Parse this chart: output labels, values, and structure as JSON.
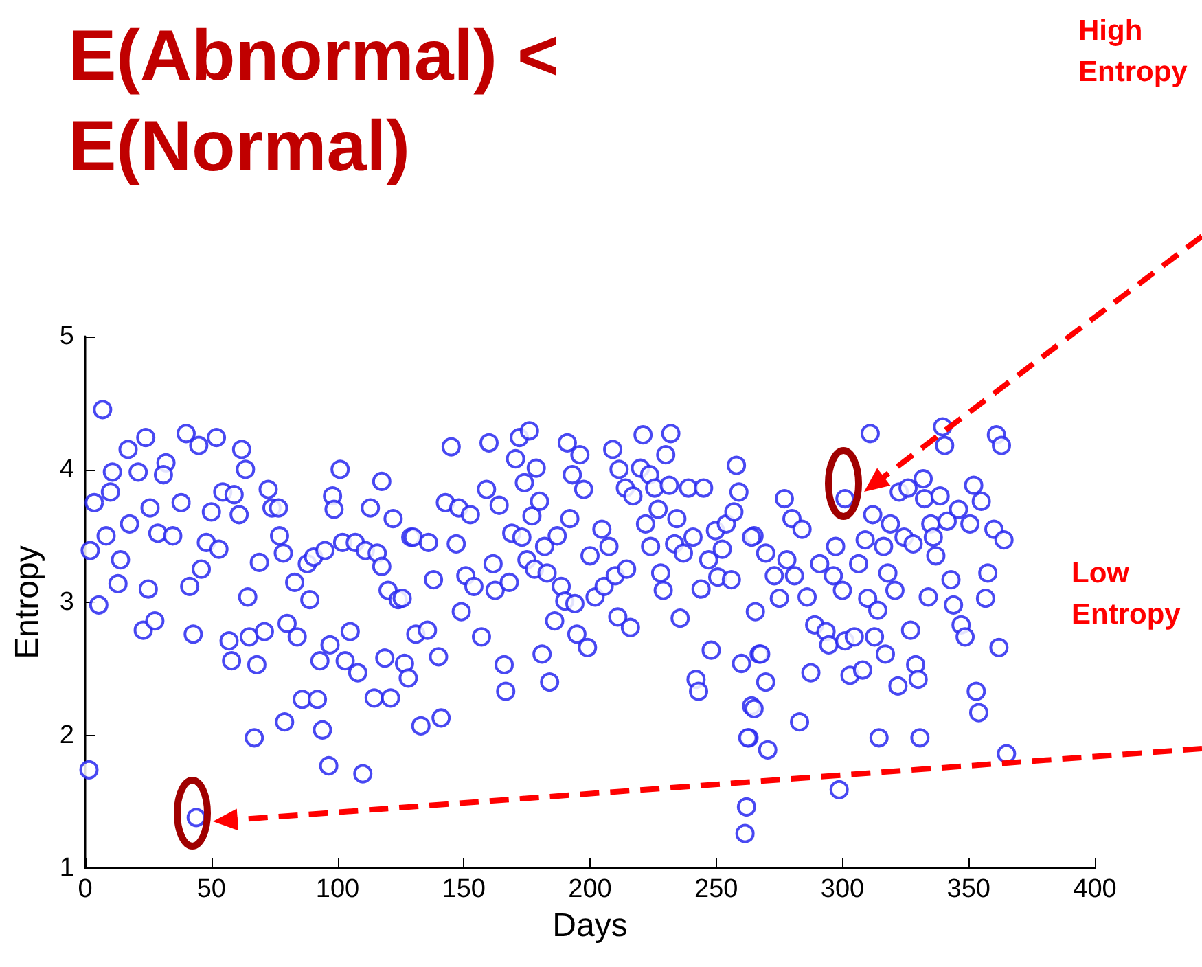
{
  "chart_data": {
    "type": "scatter",
    "title": "E(Abnormal) < E(Normal)",
    "xlabel": "Days",
    "ylabel": "Entropy",
    "xlim": [
      0,
      400
    ],
    "xticks": [
      0,
      50,
      100,
      150,
      200,
      250,
      300,
      350,
      400
    ],
    "ylim": [
      1,
      5
    ],
    "yticks": [
      1,
      2,
      3,
      4,
      5
    ],
    "marker": "circle",
    "annotations": [
      "High Entropy",
      "Low Entropy"
    ],
    "x": [
      1.5,
      2,
      3.6,
      5.4,
      6.9,
      8.3,
      10.8,
      10,
      13,
      14,
      17,
      17.6,
      21,
      24,
      23,
      25,
      27.6,
      25.7,
      28.8,
      32,
      31,
      34.7,
      38,
      40,
      41.4,
      42.8,
      44,
      45,
      46,
      48,
      50,
      52,
      53,
      54.5,
      59,
      62,
      63.5,
      57,
      58,
      61,
      64.4,
      65,
      67,
      68,
      69,
      71,
      72.5,
      74,
      76.6,
      77,
      78.5,
      79,
      80,
      83,
      84,
      86,
      88,
      89,
      90.5,
      92,
      93,
      94,
      95,
      96.5,
      98,
      98.6,
      101,
      97,
      102,
      103,
      107,
      105,
      108,
      110,
      111,
      113,
      114.5,
      115.7,
      117.5,
      117.5,
      118.7,
      120,
      121,
      122,
      124,
      126.5,
      128,
      129,
      125.6,
      130,
      133,
      131,
      135.6,
      136,
      138,
      141,
      140,
      142.7,
      145,
      147,
      149,
      148,
      150.8,
      152.6,
      154,
      157,
      159,
      160,
      161.6,
      162.4,
      164,
      166,
      166.6,
      168,
      169,
      170.5,
      172,
      173,
      176,
      174,
      175,
      177,
      178.7,
      178,
      180,
      181,
      182,
      183,
      184,
      186,
      187,
      188.6,
      190,
      191,
      193,
      192,
      194,
      194.8,
      196,
      197.5,
      199,
      200,
      202,
      204.7,
      205.6,
      207.5,
      209,
      210,
      211.5,
      211,
      214,
      214.5,
      216,
      217,
      220,
      221,
      222,
      223.6,
      224,
      225.6,
      227,
      228,
      229,
      230,
      232,
      231.4,
      234.4,
      233.5,
      235.7,
      237,
      239,
      240.8,
      242,
      243,
      244,
      245,
      247,
      248,
      249.7,
      250.6,
      252.4,
      254,
      256,
      257,
      258,
      259,
      260,
      262,
      261.4,
      263,
      264,
      265.5,
      265,
      267,
      264,
      265,
      262.5,
      267.6,
      269.6,
      270.4,
      269.6,
      273,
      275,
      277,
      278,
      280,
      281,
      283,
      284,
      286,
      287.5,
      289,
      291,
      293.5,
      294.6,
      296.4,
      297.3,
      298.7,
      300,
      301,
      301,
      303,
      304.7,
      306.4,
      308,
      309,
      310,
      311,
      312,
      312.7,
      314,
      314.5,
      316.3,
      317,
      318,
      319,
      320.8,
      322,
      322.5,
      324.4,
      326,
      327,
      328,
      329,
      330,
      330.7,
      332,
      332.5,
      334,
      335,
      336,
      337,
      338.7,
      339.7,
      340.5,
      341.5,
      343,
      344,
      346,
      347,
      348.6,
      350.5,
      352,
      353,
      354,
      355,
      356.7,
      357.6,
      360,
      361,
      363,
      362,
      364,
      365
    ],
    "series": [
      {
        "color": "#2828f0",
        "values": [
          1.74,
          3.39,
          3.75,
          2.98,
          4.45,
          3.5,
          3.98,
          3.83,
          3.14,
          3.32,
          4.15,
          3.59,
          3.98,
          4.24,
          2.79,
          3.1,
          2.86,
          3.71,
          3.52,
          4.05,
          3.96,
          3.5,
          3.75,
          4.27,
          3.12,
          2.76,
          1.38,
          4.18,
          3.25,
          3.45,
          3.68,
          4.24,
          3.4,
          3.83,
          3.81,
          4.15,
          4,
          2.71,
          2.56,
          3.66,
          3.04,
          2.74,
          1.98,
          2.53,
          3.3,
          2.78,
          3.85,
          3.71,
          3.71,
          3.5,
          3.37,
          2.1,
          2.84,
          3.15,
          2.74,
          2.27,
          3.29,
          3.02,
          3.34,
          2.27,
          2.56,
          2.04,
          3.39,
          1.77,
          3.8,
          3.7,
          4,
          2.68,
          3.45,
          2.56,
          3.45,
          2.78,
          2.47,
          1.71,
          3.39,
          3.71,
          2.28,
          3.37,
          3.91,
          3.27,
          2.58,
          3.09,
          2.28,
          3.63,
          3.02,
          2.54,
          2.43,
          3.49,
          3.03,
          3.49,
          2.07,
          2.76,
          2.79,
          3.45,
          3.17,
          2.13,
          2.59,
          3.75,
          4.17,
          3.44,
          2.93,
          3.71,
          3.2,
          3.66,
          3.12,
          2.74,
          3.85,
          4.2,
          3.29,
          3.09,
          3.73,
          2.53,
          2.33,
          3.15,
          3.52,
          4.08,
          4.24,
          3.49,
          4.29,
          3.9,
          3.32,
          3.65,
          4.01,
          3.25,
          3.76,
          2.61,
          3.42,
          3.22,
          2.4,
          2.86,
          3.5,
          3.12,
          3.01,
          4.2,
          3.96,
          3.63,
          2.99,
          2.76,
          4.11,
          3.85,
          2.66,
          3.35,
          3.04,
          3.55,
          3.12,
          3.42,
          4.15,
          3.2,
          4,
          2.89,
          3.86,
          3.25,
          2.81,
          3.8,
          4.01,
          4.26,
          3.59,
          3.96,
          3.42,
          3.86,
          3.7,
          3.22,
          3.09,
          4.11,
          4.27,
          3.88,
          3.63,
          3.44,
          2.88,
          3.37,
          3.86,
          3.49,
          2.42,
          2.33,
          3.1,
          3.86,
          3.32,
          2.64,
          3.54,
          3.19,
          3.4,
          3.59,
          3.17,
          3.68,
          4.03,
          3.83,
          2.54,
          1.46,
          1.26,
          1.98,
          2.22,
          2.93,
          3.5,
          2.61,
          3.49,
          2.2,
          1.98,
          2.61,
          2.4,
          1.89,
          3.37,
          3.2,
          3.03,
          3.78,
          3.32,
          3.63,
          3.2,
          2.1,
          3.55,
          3.04,
          2.47,
          2.83,
          3.29,
          2.78,
          2.68,
          3.2,
          3.42,
          1.59,
          3.09,
          3.78,
          2.71,
          2.45,
          2.74,
          3.29,
          2.49,
          3.47,
          3.03,
          4.27,
          3.66,
          2.74,
          2.94,
          1.98,
          3.42,
          2.61,
          3.22,
          3.59,
          3.09,
          2.37,
          3.83,
          3.49,
          3.86,
          2.79,
          3.44,
          2.53,
          2.42,
          1.98,
          3.93,
          3.78,
          3.04,
          3.59,
          3.49,
          3.35,
          3.8,
          4.32,
          4.18,
          3.61,
          3.17,
          2.98,
          3.7,
          2.83,
          2.74,
          3.59,
          3.88,
          2.33,
          2.17,
          3.76,
          3.03,
          3.22,
          3.55,
          4.26,
          4.18,
          2.66,
          3.47,
          1.86
        ]
      }
    ]
  }
}
